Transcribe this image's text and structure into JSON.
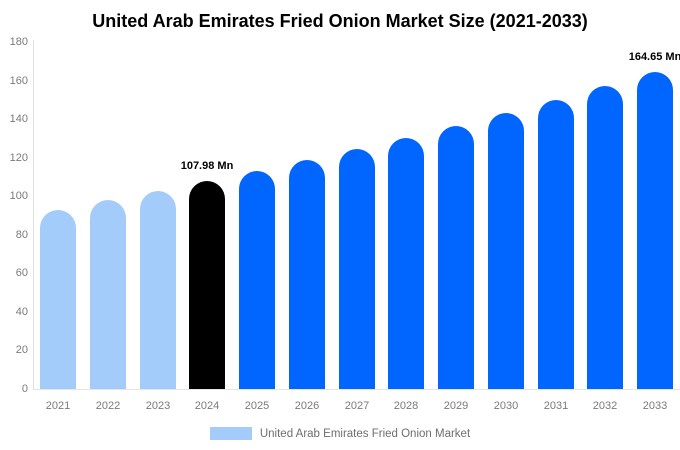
{
  "chart_data": {
    "type": "bar",
    "title": "United Arab Emirates Fried Onion Market Size (2021-2033)",
    "categories": [
      "2021",
      "2022",
      "2023",
      "2024",
      "2025",
      "2026",
      "2027",
      "2028",
      "2029",
      "2030",
      "2031",
      "2032",
      "2033"
    ],
    "values": [
      92.8,
      97.9,
      102.7,
      107.98,
      113.2,
      118.6,
      124.3,
      130.3,
      136.5,
      143.1,
      150.0,
      157.2,
      164.65
    ],
    "unit": "Mn",
    "xlabel": "",
    "ylabel": "",
    "ylim": [
      0,
      180
    ],
    "yticks": [
      0,
      20,
      40,
      60,
      80,
      100,
      120,
      140,
      160,
      180
    ],
    "grid": false,
    "bar_colors": [
      "#A4CCFB",
      "#A4CCFB",
      "#A4CCFB",
      "#000000",
      "#0066FF",
      "#0066FF",
      "#0066FF",
      "#0066FF",
      "#0066FF",
      "#0066FF",
      "#0066FF",
      "#0066FF",
      "#0066FF"
    ],
    "annotations": [
      {
        "index": 3,
        "text": "107.98 Mn"
      },
      {
        "index": 12,
        "text": "164.65 Mn"
      }
    ],
    "legend": {
      "position": "bottom",
      "label": "United Arab Emirates Fried Onion Market",
      "swatch_color": "#A4CCFB"
    },
    "colors": {
      "historical_bar": "#A4CCFB",
      "highlight_bar": "#000000",
      "forecast_bar": "#0066FF",
      "axis_text": "#7a7a7a",
      "axis_line": "#e0e0e0",
      "title_text": "#000000"
    }
  }
}
